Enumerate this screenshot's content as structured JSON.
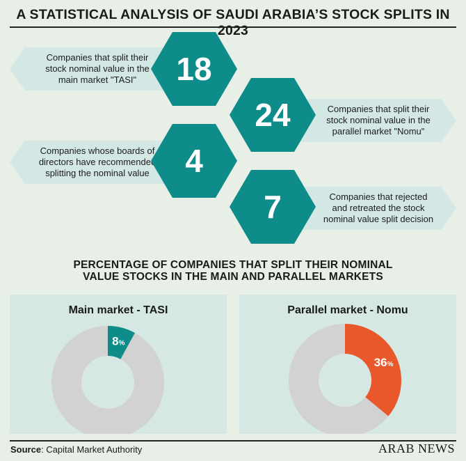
{
  "header": {
    "title": "A STATISTICAL ANALYSIS OF SAUDI ARABIA’S STOCK SPLITS IN 2023"
  },
  "stats": [
    {
      "value": "18",
      "lines": [
        "Companies that split their",
        "stock nominal value in the",
        "main market \"TASI\""
      ]
    },
    {
      "value": "24",
      "lines": [
        "Companies that split their",
        "stock nominal value in the",
        "parallel market \"Nomu\""
      ]
    },
    {
      "value": "4",
      "lines": [
        "Companies whose boards of",
        "directors have recommended",
        "splitting the nominal value"
      ]
    },
    {
      "value": "7",
      "lines": [
        "Companies that rejected",
        "and retreated the stock",
        "nominal value split decision"
      ]
    }
  ],
  "section": {
    "title_lines": [
      "PERCENTAGE OF COMPANIES THAT SPLIT THEIR NOMINAL",
      "VALUE STOCKS IN THE MAIN AND PARALLEL MARKETS"
    ]
  },
  "chart_data": [
    {
      "type": "pie",
      "title": "Main market - TASI",
      "value": 8,
      "value_label": "8",
      "unit": "%",
      "accent": "#0d8c8a",
      "rest": "#d2d2d2"
    },
    {
      "type": "pie",
      "title": "Parallel market - Nomu",
      "value": 36,
      "value_label": "36",
      "unit": "%",
      "accent": "#e8582a",
      "rest": "#d2d2d2"
    }
  ],
  "footer": {
    "source_label": "Source",
    "source_text": ": Capital Market Authority",
    "logo": "ARAB NEWS"
  }
}
